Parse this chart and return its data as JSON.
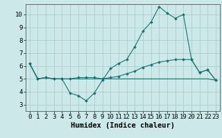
{
  "xlabel": "Humidex (Indice chaleur)",
  "bg_color": "#cce8e8",
  "grid_color": "#aacccc",
  "line_color": "#1a7070",
  "xlim": [
    -0.5,
    23.5
  ],
  "ylim": [
    2.5,
    10.8
  ],
  "xticks": [
    0,
    1,
    2,
    3,
    4,
    5,
    6,
    7,
    8,
    9,
    10,
    11,
    12,
    13,
    14,
    15,
    16,
    17,
    18,
    19,
    20,
    21,
    22,
    23
  ],
  "yticks": [
    3,
    4,
    5,
    6,
    7,
    8,
    9,
    10
  ],
  "line1_x": [
    0,
    1,
    2,
    3,
    4,
    5,
    6,
    7,
    8,
    9,
    10,
    11,
    12,
    13,
    14,
    15,
    16,
    17,
    18,
    19,
    20,
    21,
    22,
    23
  ],
  "line1_y": [
    6.2,
    5.0,
    5.1,
    5.0,
    5.0,
    3.9,
    3.7,
    3.3,
    3.9,
    4.9,
    5.8,
    6.2,
    6.5,
    7.5,
    8.7,
    9.4,
    10.6,
    10.1,
    9.7,
    10.0,
    6.5,
    5.5,
    5.7,
    4.9
  ],
  "line2_x": [
    0,
    1,
    2,
    3,
    4,
    5,
    6,
    7,
    8,
    9,
    10,
    11,
    12,
    13,
    14,
    15,
    16,
    17,
    18,
    19,
    20,
    21,
    22,
    23
  ],
  "line2_y": [
    6.2,
    5.0,
    5.1,
    5.0,
    5.0,
    5.0,
    5.1,
    5.1,
    5.1,
    5.0,
    5.1,
    5.2,
    5.4,
    5.6,
    5.9,
    6.1,
    6.3,
    6.4,
    6.5,
    6.5,
    6.5,
    5.5,
    5.7,
    4.9
  ],
  "line3_x": [
    0,
    1,
    2,
    3,
    4,
    5,
    6,
    7,
    8,
    9,
    10,
    11,
    12,
    13,
    14,
    15,
    16,
    17,
    18,
    19,
    20,
    21,
    22,
    23
  ],
  "line3_y": [
    6.2,
    5.0,
    5.1,
    5.0,
    5.0,
    5.0,
    5.0,
    5.0,
    5.0,
    5.0,
    5.0,
    5.0,
    5.0,
    5.0,
    5.0,
    5.0,
    5.0,
    5.0,
    5.0,
    5.0,
    5.0,
    5.0,
    5.0,
    4.9
  ],
  "tick_fontsize": 6.5,
  "xlabel_fontsize": 7.5
}
